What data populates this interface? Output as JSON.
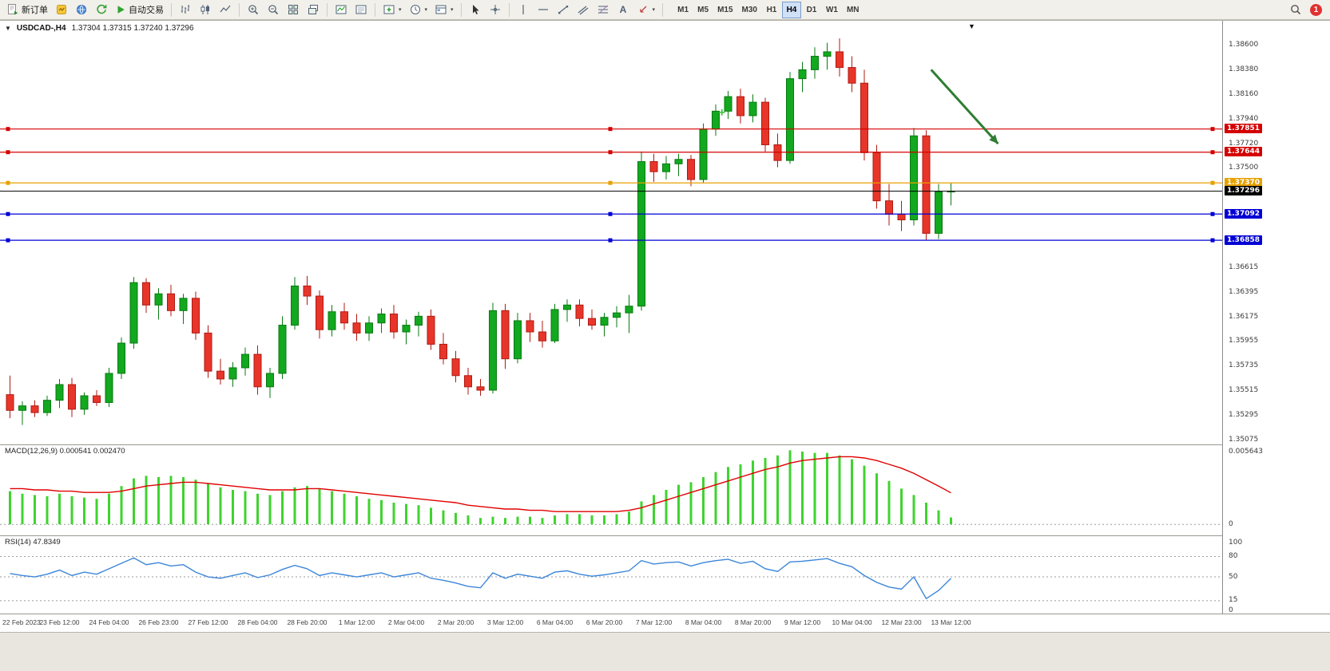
{
  "toolbar": {
    "new_order_label": "新订单",
    "auto_trading_label": "自动交易",
    "timeframes": [
      "M1",
      "M5",
      "M15",
      "M30",
      "H1",
      "H4",
      "D1",
      "W1",
      "MN"
    ],
    "active_timeframe": "H4",
    "notification_count": "1"
  },
  "colors": {
    "candle_up": "#12a81f",
    "candle_up_border": "#0a7a12",
    "candle_down": "#e8352a",
    "candle_down_border": "#b01a12",
    "line_red": "#d40000",
    "line_blue": "#0000d4",
    "line_orange": "#e7a100",
    "current_price": "#000000",
    "macd_histogram": "#3fd32f",
    "macd_signal": "#e00000",
    "rsi_line": "#3c86d8",
    "arrow": "#2e7d32",
    "plus_marker": "#35c435",
    "badge": "#e03131"
  },
  "chart_data": {
    "type": "candlestick",
    "title": "USDCAD-,H4",
    "ohlc_text": "1.37304 1.37315 1.37240 1.37296",
    "price_axis": {
      "max": 1.3881,
      "min": 1.35036,
      "labels": [
        "1.38600",
        "1.38380",
        "1.38160",
        "1.37940",
        "1.37720",
        "1.37500",
        "1.36615",
        "1.36395",
        "1.36175",
        "1.35955",
        "1.35735",
        "1.35515",
        "1.35295",
        "1.35075"
      ]
    },
    "hlines": [
      {
        "price": 1.37851,
        "label": "1.37851",
        "color_key": "line_red"
      },
      {
        "price": 1.37644,
        "label": "1.37644",
        "color_key": "line_red"
      },
      {
        "price": 1.3737,
        "label": "1.37370",
        "color_key": "line_orange"
      },
      {
        "price": 1.37092,
        "label": "1.37092",
        "color_key": "line_blue"
      },
      {
        "price": 1.36858,
        "label": "1.36858",
        "color_key": "line_blue"
      }
    ],
    "current_price": {
      "price": 1.37296,
      "label": "1.37296"
    },
    "annotations": {
      "arrow": {
        "from_index": 74.4,
        "from_price": 1.3838,
        "to_index": 79.8,
        "to_price": 1.3772
      },
      "plus_marker": {
        "index": 57.5,
        "price": 1.38
      }
    },
    "candles": [
      [
        1.3548,
        1.3565,
        1.3527,
        1.3534
      ],
      [
        1.3534,
        1.3542,
        1.3521,
        1.3538
      ],
      [
        1.3538,
        1.3543,
        1.3528,
        1.3532
      ],
      [
        1.3532,
        1.3547,
        1.3529,
        1.3543
      ],
      [
        1.3543,
        1.3562,
        1.3536,
        1.3557
      ],
      [
        1.3557,
        1.3563,
        1.3528,
        1.3535
      ],
      [
        1.3535,
        1.355,
        1.353,
        1.3547
      ],
      [
        1.3547,
        1.3552,
        1.3538,
        1.3541
      ],
      [
        1.3541,
        1.3572,
        1.3537,
        1.3567
      ],
      [
        1.3567,
        1.3599,
        1.3562,
        1.3594
      ],
      [
        1.3594,
        1.3653,
        1.3589,
        1.3648
      ],
      [
        1.3648,
        1.3652,
        1.3621,
        1.3628
      ],
      [
        1.3628,
        1.3643,
        1.3615,
        1.3638
      ],
      [
        1.3638,
        1.3646,
        1.3618,
        1.3623
      ],
      [
        1.3623,
        1.3638,
        1.3611,
        1.3634
      ],
      [
        1.3634,
        1.364,
        1.3597,
        1.3603
      ],
      [
        1.3603,
        1.361,
        1.3563,
        1.3569
      ],
      [
        1.3569,
        1.358,
        1.3557,
        1.3562
      ],
      [
        1.3562,
        1.3577,
        1.3555,
        1.3572
      ],
      [
        1.3572,
        1.359,
        1.3565,
        1.3584
      ],
      [
        1.3584,
        1.3592,
        1.3548,
        1.3555
      ],
      [
        1.3555,
        1.3572,
        1.3545,
        1.3567
      ],
      [
        1.3567,
        1.3618,
        1.3562,
        1.361
      ],
      [
        1.361,
        1.3653,
        1.3606,
        1.3645
      ],
      [
        1.3645,
        1.3654,
        1.3628,
        1.3636
      ],
      [
        1.3636,
        1.3641,
        1.3598,
        1.3606
      ],
      [
        1.3606,
        1.3628,
        1.36,
        1.3622
      ],
      [
        1.3622,
        1.363,
        1.3606,
        1.3612
      ],
      [
        1.3612,
        1.362,
        1.3596,
        1.3603
      ],
      [
        1.3603,
        1.3618,
        1.3596,
        1.3612
      ],
      [
        1.3612,
        1.3625,
        1.3603,
        1.362
      ],
      [
        1.362,
        1.3628,
        1.3598,
        1.3604
      ],
      [
        1.3604,
        1.3615,
        1.3593,
        1.361
      ],
      [
        1.361,
        1.3622,
        1.36,
        1.3618
      ],
      [
        1.3618,
        1.3624,
        1.3588,
        1.3593
      ],
      [
        1.3593,
        1.3603,
        1.3575,
        1.358
      ],
      [
        1.358,
        1.3587,
        1.3559,
        1.3565
      ],
      [
        1.3565,
        1.3572,
        1.3548,
        1.3555
      ],
      [
        1.3555,
        1.3562,
        1.3547,
        1.3552
      ],
      [
        1.3552,
        1.363,
        1.3549,
        1.3623
      ],
      [
        1.3623,
        1.3629,
        1.3571,
        1.358
      ],
      [
        1.358,
        1.3621,
        1.3576,
        1.3614
      ],
      [
        1.3614,
        1.3621,
        1.3595,
        1.3604
      ],
      [
        1.3604,
        1.3614,
        1.359,
        1.3596
      ],
      [
        1.3596,
        1.3629,
        1.3594,
        1.3624
      ],
      [
        1.3624,
        1.3633,
        1.3613,
        1.3628
      ],
      [
        1.3628,
        1.3633,
        1.3609,
        1.3616
      ],
      [
        1.3616,
        1.3624,
        1.3606,
        1.361
      ],
      [
        1.361,
        1.3621,
        1.36,
        1.3617
      ],
      [
        1.3617,
        1.3627,
        1.3608,
        1.3621
      ],
      [
        1.3621,
        1.3637,
        1.3603,
        1.3627
      ],
      [
        1.3627,
        1.3765,
        1.3623,
        1.3756
      ],
      [
        1.3756,
        1.3763,
        1.3738,
        1.3747
      ],
      [
        1.3747,
        1.3761,
        1.374,
        1.3754
      ],
      [
        1.3754,
        1.3763,
        1.3743,
        1.3758
      ],
      [
        1.3758,
        1.3762,
        1.3734,
        1.374
      ],
      [
        1.374,
        1.379,
        1.3737,
        1.3785
      ],
      [
        1.3785,
        1.3807,
        1.3779,
        1.3801
      ],
      [
        1.3801,
        1.3819,
        1.3794,
        1.3814
      ],
      [
        1.3814,
        1.3821,
        1.379,
        1.3797
      ],
      [
        1.3797,
        1.3816,
        1.3791,
        1.3809
      ],
      [
        1.3809,
        1.3813,
        1.3764,
        1.3771
      ],
      [
        1.3771,
        1.3781,
        1.3751,
        1.3757
      ],
      [
        1.3757,
        1.3836,
        1.3754,
        1.383
      ],
      [
        1.383,
        1.3845,
        1.3818,
        1.3838
      ],
      [
        1.3838,
        1.3858,
        1.383,
        1.385
      ],
      [
        1.385,
        1.3862,
        1.3838,
        1.3854
      ],
      [
        1.3854,
        1.3866,
        1.3832,
        1.384
      ],
      [
        1.384,
        1.385,
        1.3818,
        1.3826
      ],
      [
        1.3826,
        1.3838,
        1.3757,
        1.3764
      ],
      [
        1.3764,
        1.3771,
        1.3714,
        1.3721
      ],
      [
        1.3721,
        1.3736,
        1.3699,
        1.3709
      ],
      [
        1.3709,
        1.3721,
        1.3694,
        1.3704
      ],
      [
        1.3704,
        1.3786,
        1.3699,
        1.3779
      ],
      [
        1.3779,
        1.3784,
        1.3686,
        1.3692
      ],
      [
        1.3692,
        1.3736,
        1.3687,
        1.3729
      ],
      [
        1.3729,
        1.3737,
        1.3717,
        1.37296
      ]
    ],
    "time_labels": [
      "22 Feb 2023",
      "23 Feb 12:00",
      "24 Feb 04:00",
      "26 Feb 23:00",
      "27 Feb 12:00",
      "28 Feb 04:00",
      "28 Feb 20:00",
      "1 Mar 12:00",
      "2 Mar 04:00",
      "2 Mar 20:00",
      "3 Mar 12:00",
      "6 Mar 04:00",
      "6 Mar 20:00",
      "7 Mar 12:00",
      "8 Mar 04:00",
      "8 Mar 20:00",
      "9 Mar 12:00",
      "10 Mar 04:00",
      "12 Mar 23:00",
      "13 Mar 12:00"
    ],
    "macd": {
      "label": "MACD(12,26,9) 0.000541 0.002470",
      "axis": {
        "max": 0.0062,
        "min": -0.0008,
        "labels": [
          {
            "value": 0.005643,
            "label": "0.005643"
          },
          {
            "value": 0,
            "label": "0"
          }
        ]
      },
      "histogram": [
        0.0026,
        0.0024,
        0.0023,
        0.0022,
        0.0024,
        0.0022,
        0.0021,
        0.002,
        0.0024,
        0.003,
        0.0036,
        0.0038,
        0.0037,
        0.0038,
        0.0037,
        0.0035,
        0.0032,
        0.0029,
        0.0027,
        0.0026,
        0.0024,
        0.0023,
        0.0026,
        0.0029,
        0.003,
        0.0028,
        0.0026,
        0.0024,
        0.0022,
        0.002,
        0.0019,
        0.0017,
        0.0016,
        0.0015,
        0.0013,
        0.0011,
        0.0009,
        0.0007,
        0.0005,
        0.0006,
        0.0005,
        0.0006,
        0.0006,
        0.0005,
        0.0007,
        0.0008,
        0.0008,
        0.0007,
        0.0007,
        0.0008,
        0.001,
        0.0018,
        0.0023,
        0.0027,
        0.0031,
        0.0033,
        0.0037,
        0.0041,
        0.0045,
        0.0047,
        0.005,
        0.0052,
        0.0054,
        0.0058,
        0.0057,
        0.0056,
        0.0056,
        0.0054,
        0.0051,
        0.0046,
        0.004,
        0.0034,
        0.0028,
        0.0023,
        0.0017,
        0.0011,
        0.000541
      ],
      "signal": [
        0.0028,
        0.0028,
        0.0027,
        0.0027,
        0.0026,
        0.0026,
        0.0025,
        0.0025,
        0.0025,
        0.0026,
        0.0028,
        0.003,
        0.0031,
        0.0032,
        0.0033,
        0.0033,
        0.0032,
        0.0031,
        0.003,
        0.0029,
        0.0028,
        0.0027,
        0.0027,
        0.0027,
        0.0028,
        0.0028,
        0.0027,
        0.0026,
        0.0025,
        0.0024,
        0.0023,
        0.0022,
        0.0021,
        0.002,
        0.0019,
        0.0018,
        0.0017,
        0.0015,
        0.0014,
        0.0013,
        0.0012,
        0.0012,
        0.0011,
        0.0011,
        0.001,
        0.001,
        0.001,
        0.001,
        0.001,
        0.001,
        0.0011,
        0.0013,
        0.0016,
        0.0019,
        0.0022,
        0.0025,
        0.0028,
        0.0031,
        0.0034,
        0.0037,
        0.004,
        0.0043,
        0.0045,
        0.0048,
        0.005,
        0.0051,
        0.0052,
        0.0053,
        0.0053,
        0.0052,
        0.005,
        0.0047,
        0.0044,
        0.004,
        0.0035,
        0.003,
        0.00247
      ]
    },
    "rsi": {
      "label": "RSI(14) 47.8349",
      "max": 110,
      "min": -4,
      "levels": [
        80,
        50,
        15
      ],
      "axis_labels": [
        {
          "value": 100,
          "label": "100"
        },
        {
          "value": 80,
          "label": "80"
        },
        {
          "value": 50,
          "label": "50"
        },
        {
          "value": 15,
          "label": "15"
        },
        {
          "value": 0,
          "label": "0"
        }
      ],
      "values": [
        55,
        52,
        50,
        54,
        60,
        52,
        57,
        54,
        62,
        70,
        78,
        68,
        71,
        66,
        68,
        57,
        50,
        48,
        52,
        56,
        49,
        53,
        61,
        67,
        62,
        52,
        56,
        53,
        50,
        53,
        56,
        50,
        53,
        56,
        48,
        45,
        41,
        36,
        34,
        56,
        48,
        54,
        51,
        48,
        57,
        59,
        54,
        51,
        53,
        56,
        59,
        74,
        69,
        71,
        72,
        66,
        71,
        74,
        76,
        70,
        73,
        62,
        58,
        72,
        73,
        75,
        77,
        70,
        65,
        52,
        42,
        35,
        32,
        50,
        18,
        30,
        47.8349
      ]
    }
  }
}
